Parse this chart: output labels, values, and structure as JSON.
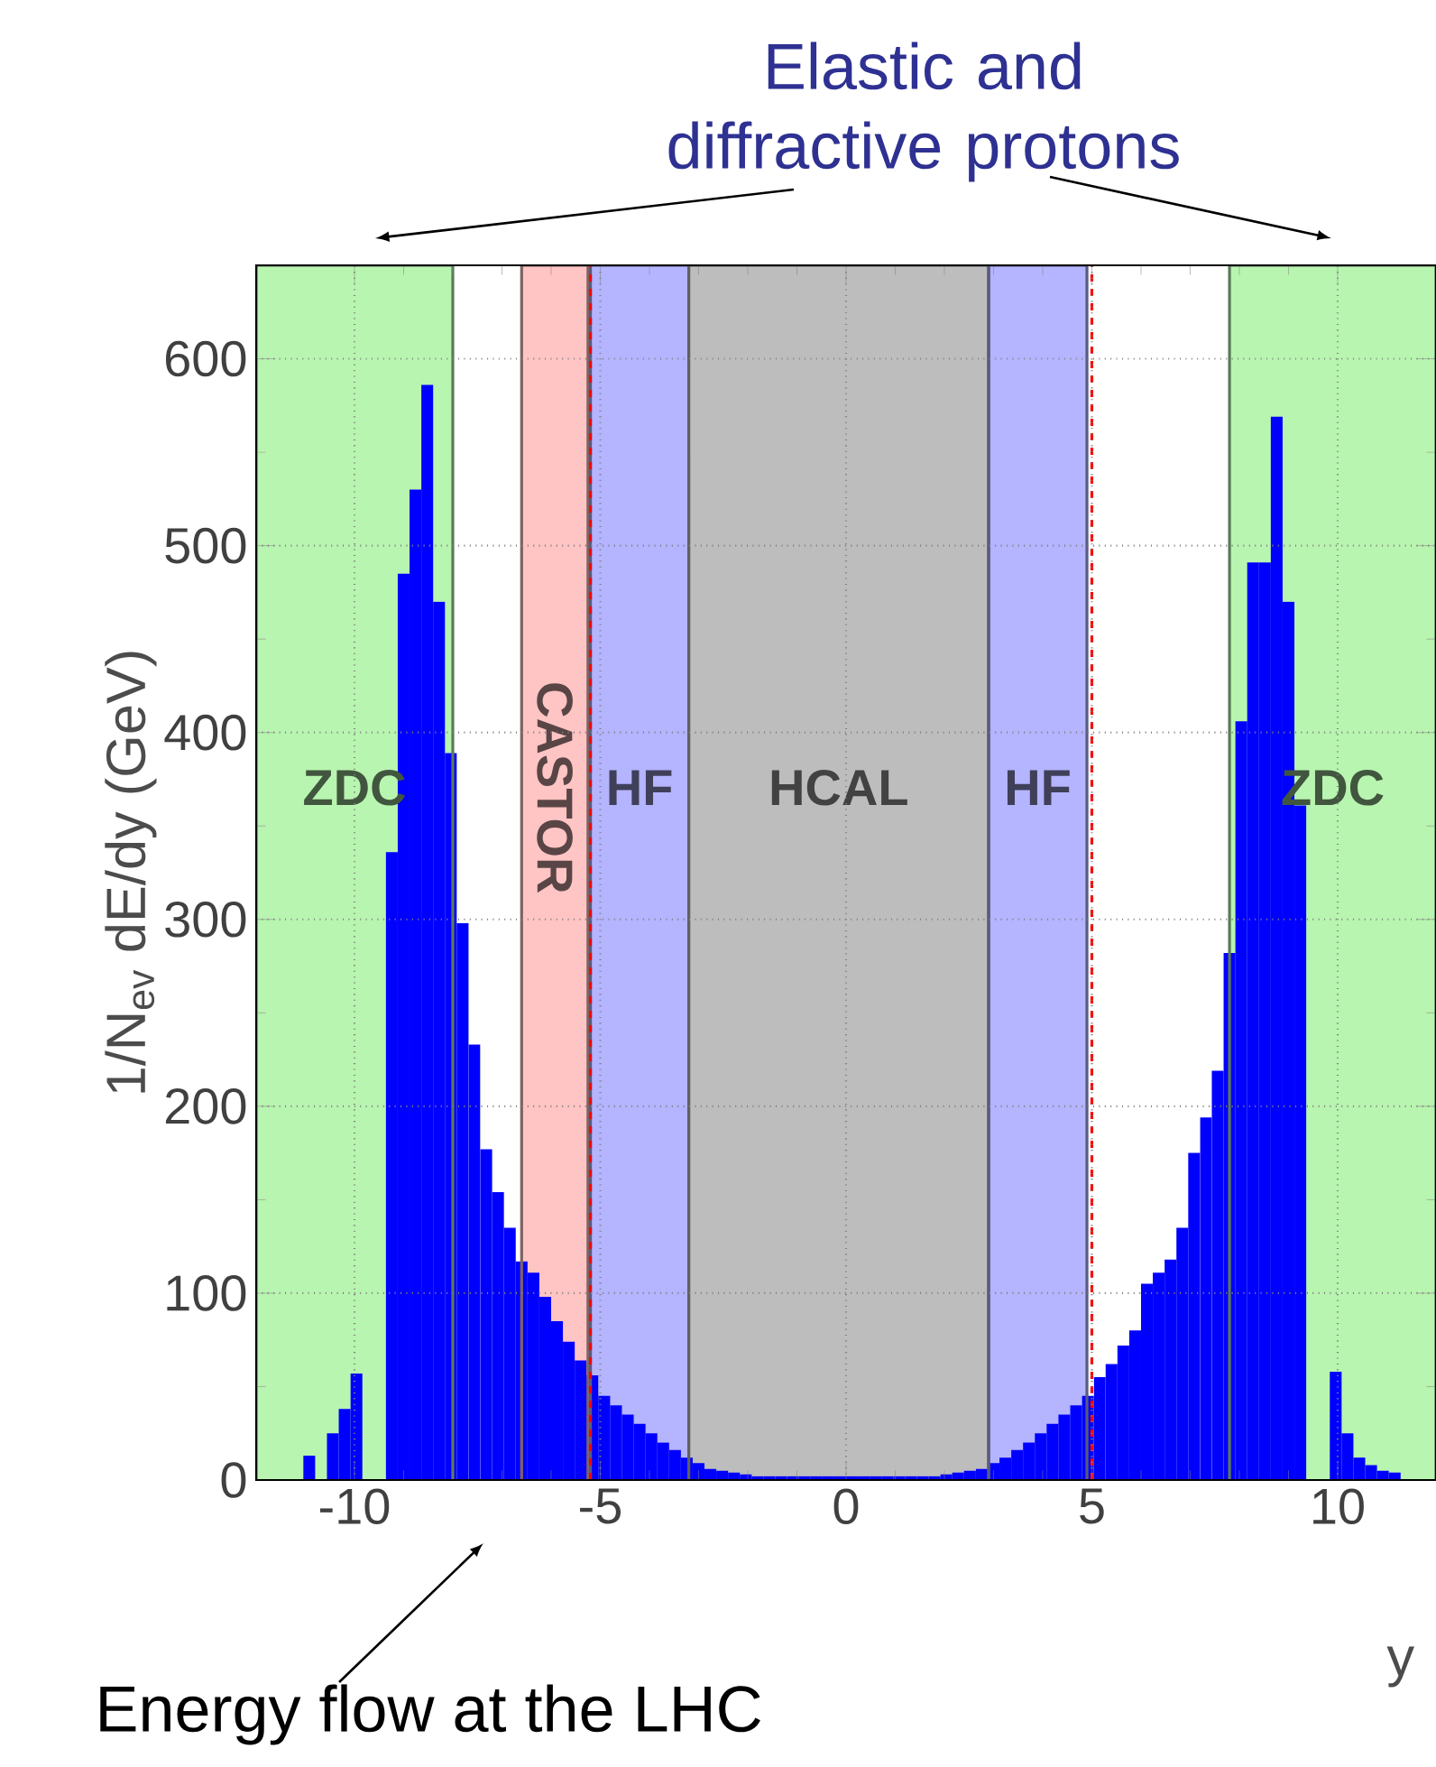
{
  "chart_data": {
    "type": "histogram",
    "xlabel": "y",
    "ylabel": "1/N$_{ev}$ dE/dy (GeV)",
    "annotations": [
      "Elastic and diffractive protons",
      "Energy flow at the LHC"
    ],
    "bins": [
      -12,
      -11.76,
      -11.52,
      -11.28,
      -11.04,
      -10.8,
      -10.56,
      -10.32,
      -10.08,
      -9.84,
      -9.6,
      -9.36,
      -9.12,
      -8.88,
      -8.64,
      -8.4,
      -8.16,
      -7.92,
      -7.68,
      -7.44,
      -7.2,
      -6.96,
      -6.72,
      -6.48,
      -6.24,
      -6,
      -5.76,
      -5.52,
      -5.28,
      -5.04,
      -4.8,
      -4.56,
      -4.32,
      -4.08,
      -3.84,
      -3.6,
      -3.36,
      -3.12,
      -2.88,
      -2.64,
      -2.4,
      -2.16,
      -1.92,
      -1.68,
      -1.44,
      -1.2,
      -0.96,
      -0.72,
      -0.48,
      -0.24,
      0,
      0.24,
      0.48,
      0.72,
      0.96,
      1.2,
      1.44,
      1.68,
      1.92,
      2.16,
      2.4,
      2.64,
      2.88,
      3.12,
      3.36,
      3.6,
      3.84,
      4.08,
      4.32,
      4.56,
      4.8,
      5.04,
      5.28,
      5.52,
      5.76,
      6,
      6.24,
      6.48,
      6.72,
      6.96,
      7.2,
      7.44,
      7.68,
      7.92,
      8.16,
      8.4,
      8.64,
      8.88,
      9.12,
      9.36,
      9.6,
      9.84,
      10.08,
      10.32,
      10.56,
      10.8,
      11.04,
      11.28,
      11.52,
      11.76,
      12
    ],
    "values": [
      null,
      null,
      null,
      null,
      13,
      null,
      25,
      38,
      57,
      null,
      null,
      336,
      485,
      530,
      586,
      470,
      389,
      298,
      233,
      177,
      154,
      135,
      117,
      111,
      98,
      85,
      74,
      64,
      56,
      45,
      40,
      35,
      30,
      25,
      20,
      16,
      12,
      9,
      6,
      5,
      4,
      3,
      2,
      2,
      2,
      2,
      2,
      2,
      2,
      2,
      2,
      2,
      2,
      2,
      2,
      2,
      2,
      2,
      3,
      4,
      5,
      6,
      9,
      12,
      16,
      20,
      25,
      30,
      35,
      40,
      45,
      55,
      62,
      72,
      80,
      105,
      111,
      118,
      135,
      175,
      194,
      219,
      282,
      406,
      491,
      491,
      569,
      470,
      361,
      null,
      null,
      58,
      25,
      12,
      8,
      5,
      4,
      null,
      null,
      null
    ],
    "color": "#0000ff",
    "xlim": [
      -12,
      12
    ],
    "ylim": [
      0,
      650
    ],
    "xticks": [
      -10,
      -5,
      0,
      5,
      10
    ],
    "yticks": [
      0,
      100,
      200,
      300,
      400,
      500,
      600
    ],
    "grid": true,
    "bands": [
      {
        "axis": "x",
        "from": -12,
        "to": -8.0,
        "label": "ZDC",
        "color": "#b8f5b0"
      },
      {
        "axis": "x",
        "from": -6.6,
        "to": -5.25,
        "label": "CASTOR",
        "color": "#ffc4c4"
      },
      {
        "axis": "x",
        "from": -5.2,
        "to": -3.2,
        "label": "HF",
        "color": "#b4b4ff"
      },
      {
        "axis": "x",
        "from": -3.2,
        "to": 2.9,
        "label": "HCAL",
        "color": "#bdbdbd"
      },
      {
        "axis": "x",
        "from": 2.9,
        "to": 4.9,
        "label": "HF",
        "color": "#b4b4ff"
      },
      {
        "axis": "x",
        "from": 7.8,
        "to": 12,
        "label": "ZDC",
        "color": "#b8f5b0"
      }
    ],
    "ref_lines": [
      {
        "axis": "x",
        "value": -5.2,
        "color": "#ff0000",
        "line_style": "dashed"
      },
      {
        "axis": "x",
        "value": 5.0,
        "color": "#ff0000",
        "line_style": "dashed"
      }
    ]
  }
}
